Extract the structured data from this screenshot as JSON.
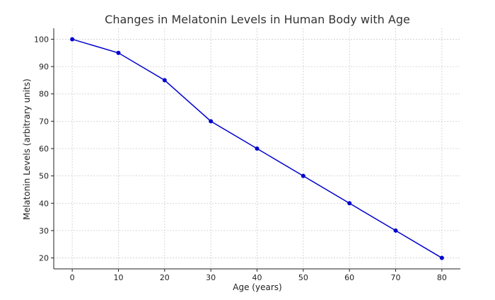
{
  "chart_data": {
    "type": "line",
    "title": "Changes in Melatonin Levels in Human Body with Age",
    "xlabel": "Age (years)",
    "ylabel": "Melatonin Levels (arbitrary units)",
    "x": [
      0,
      10,
      20,
      30,
      40,
      50,
      60,
      70,
      80
    ],
    "series": [
      {
        "values": [
          100,
          95,
          85,
          70,
          60,
          50,
          40,
          30,
          20
        ]
      }
    ],
    "xticks": [
      0,
      10,
      20,
      30,
      40,
      50,
      60,
      70,
      80
    ],
    "yticks": [
      20,
      30,
      40,
      50,
      60,
      70,
      80,
      90,
      100
    ],
    "xlim": [
      -4,
      84
    ],
    "ylim": [
      16,
      104
    ],
    "grid": true,
    "line_color": "#0000cc",
    "marker_color": "#0000cc"
  }
}
